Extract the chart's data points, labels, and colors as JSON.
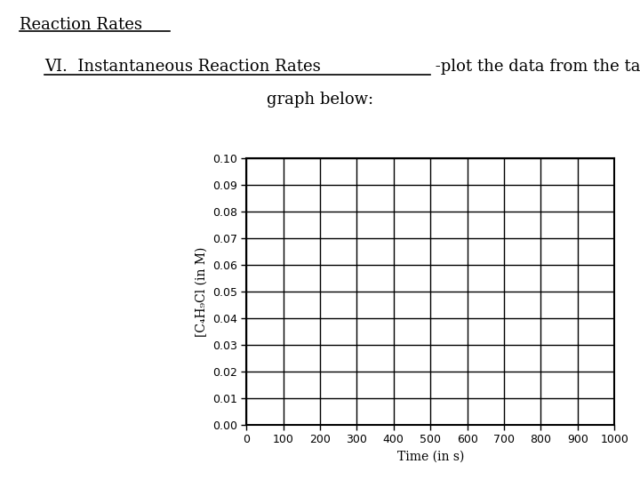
{
  "title_line1": "Reaction Rates",
  "title_line2": "VI.  Instantaneous Reaction Rates",
  "title_line2_suffix": " -plot the data from the table on the",
  "title_line3": "graph below:",
  "xlabel": "Time (in s)",
  "ylabel": "[C₄H₉Cl (in M)",
  "xmin": 0,
  "xmax": 1000,
  "ymin": 0.0,
  "ymax": 0.1,
  "x_ticks": [
    0,
    100,
    200,
    300,
    400,
    500,
    600,
    700,
    800,
    900,
    1000
  ],
  "y_ticks": [
    0.0,
    0.01,
    0.02,
    0.03,
    0.04,
    0.05,
    0.06,
    0.07,
    0.08,
    0.09,
    0.1
  ],
  "grid_color": "#000000",
  "background_color": "#ffffff",
  "font_size_header": 13,
  "font_size_axis_label": 10,
  "font_size_tick": 9
}
